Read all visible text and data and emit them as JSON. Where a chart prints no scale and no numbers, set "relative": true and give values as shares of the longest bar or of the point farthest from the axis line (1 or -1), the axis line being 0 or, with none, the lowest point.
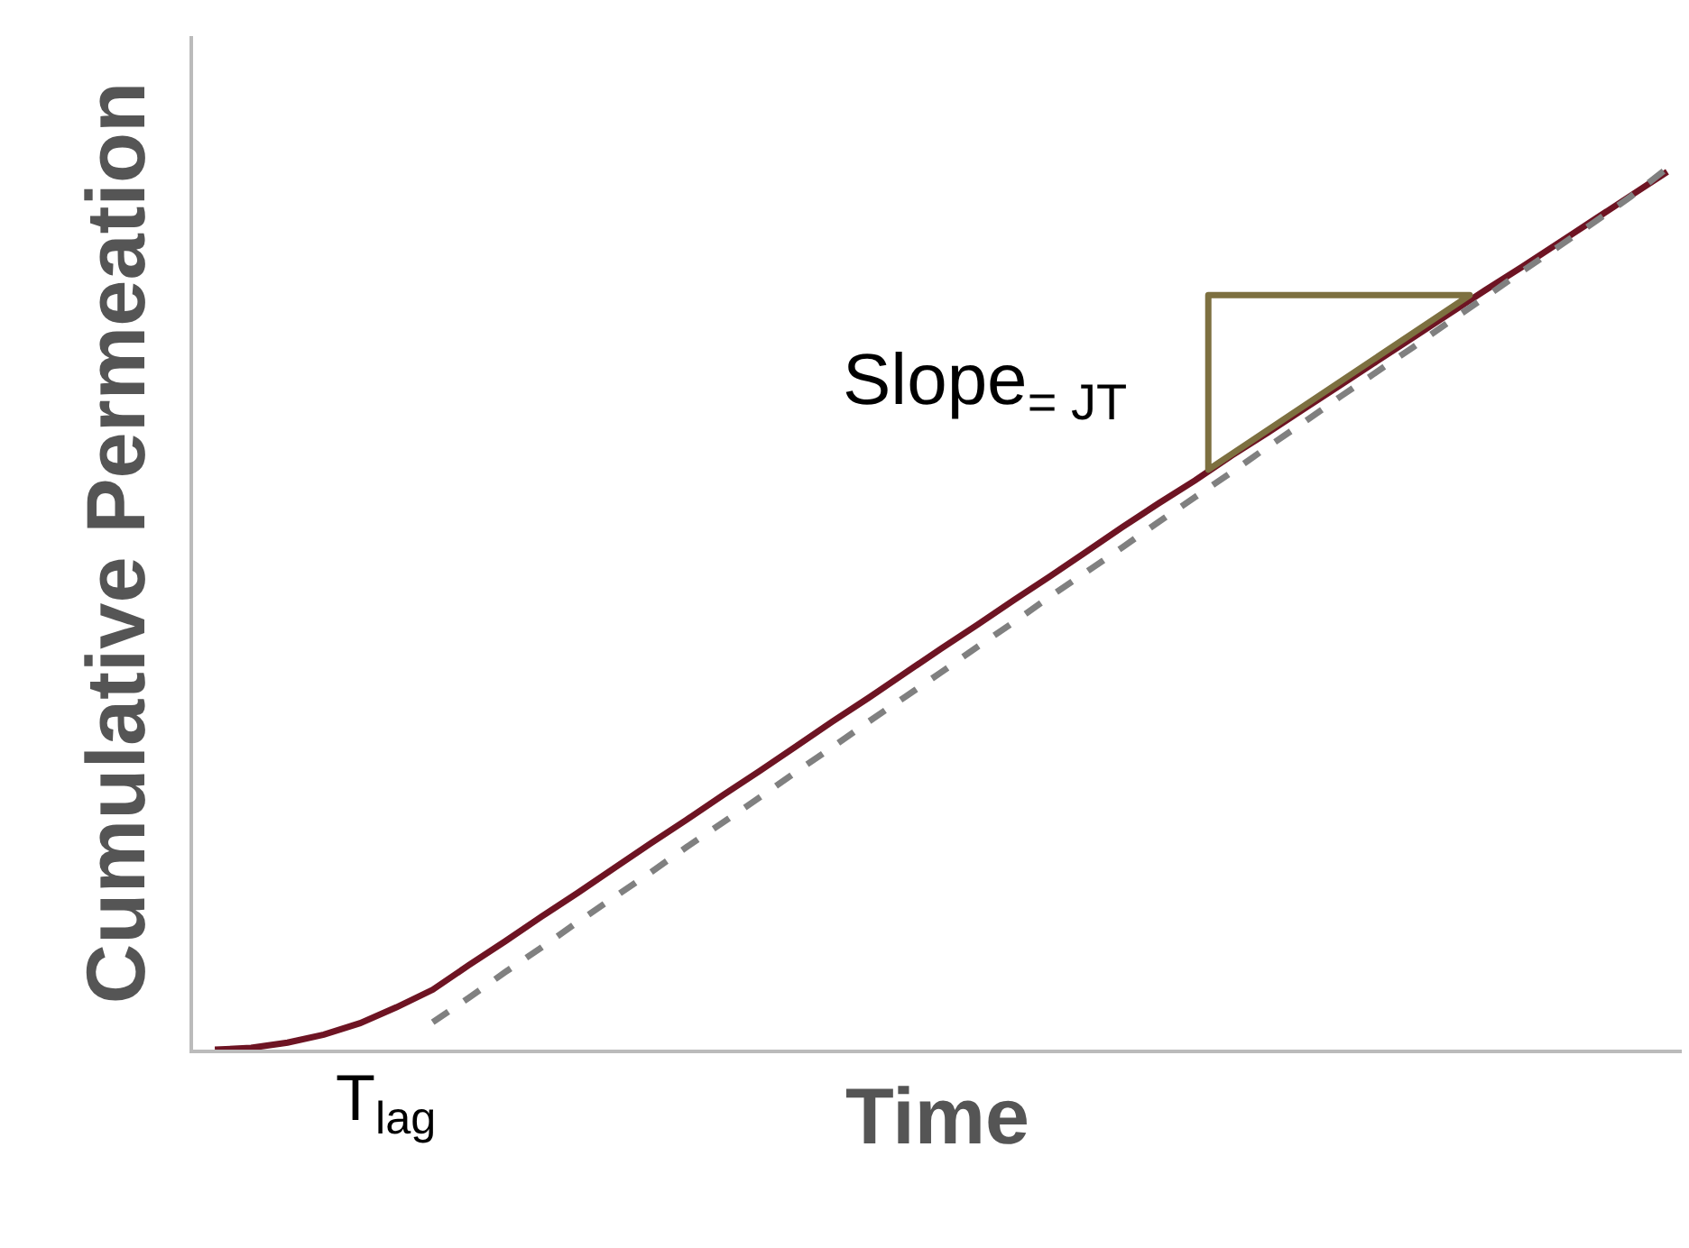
{
  "chart_data": {
    "type": "line",
    "relative": true,
    "xlabel": "Time",
    "ylabel": "Cumulative Permeation",
    "grid": false,
    "marker": "none",
    "categories": [
      null,
      null,
      null,
      null,
      null,
      null,
      null,
      null,
      null,
      null,
      null,
      null,
      null,
      null,
      null,
      null,
      null,
      null,
      null,
      null,
      null,
      null,
      null,
      null,
      null,
      null,
      null,
      null,
      null,
      null,
      null,
      null,
      null,
      null,
      null,
      null,
      null,
      null,
      null,
      null,
      null
    ],
    "series": [
      {
        "color": "#6e1423",
        "line_style": "solid",
        "values": [
          0,
          0.002,
          0.008,
          0.017,
          0.03,
          0.048,
          0.068,
          0.096,
          0.123,
          0.151,
          0.178,
          0.206,
          0.234,
          0.261,
          0.289,
          0.316,
          0.344,
          0.372,
          0.399,
          0.427,
          0.455,
          0.482,
          0.51,
          0.537,
          0.565,
          0.593,
          0.62,
          0.646,
          0.674,
          0.7,
          0.727,
          0.754,
          0.781,
          0.808,
          0.835,
          0.862,
          0.888,
          0.915,
          0.942,
          0.969,
          0.996
        ]
      },
      {
        "color": "#808080",
        "line_style": "dashed",
        "values": [
          null,
          null,
          null,
          null,
          null,
          null,
          0.031,
          0.059,
          0.088,
          0.116,
          0.145,
          0.173,
          0.201,
          0.23,
          0.258,
          0.286,
          0.315,
          0.343,
          0.372,
          0.4,
          0.428,
          0.457,
          0.485,
          0.514,
          0.542,
          0.57,
          0.599,
          0.627,
          0.655,
          0.684,
          0.712,
          0.741,
          0.769,
          0.797,
          0.826,
          0.854,
          0.883,
          0.911,
          0.939,
          0.968,
          1.0
        ]
      }
    ],
    "annotations": [
      "T$_{lag}$",
      "Slope$_{= J}$$_{T}$"
    ]
  }
}
